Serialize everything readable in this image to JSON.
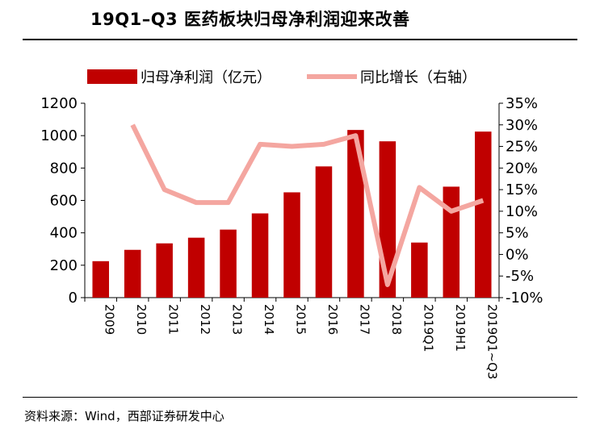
{
  "title": "19Q1–Q3 医药板块归母净利润迎来改善",
  "source": "资料来源：Wind，西部证券研发中心",
  "colors": {
    "bar": "#C00000",
    "line": "#F4A6A0",
    "axis": "#000000"
  },
  "chart_data": {
    "type": "bar",
    "categories": [
      "2009",
      "2010",
      "2011",
      "2012",
      "2013",
      "2014",
      "2015",
      "2016",
      "2017",
      "2018",
      "2019Q1",
      "2019H1",
      "2019Q1~Q3"
    ],
    "series": [
      {
        "name": "归母净利润（亿元）",
        "type": "bar",
        "axis": "left",
        "values": [
          225,
          295,
          335,
          370,
          420,
          520,
          650,
          810,
          1035,
          965,
          340,
          685,
          1025
        ]
      },
      {
        "name": "同比增长（右轴）",
        "type": "line",
        "axis": "right",
        "values": [
          null,
          30,
          15,
          12,
          12,
          25.5,
          25,
          25.5,
          27.5,
          -7,
          15.5,
          10,
          12.5
        ]
      }
    ],
    "left_axis": {
      "ylim": [
        0,
        1200
      ],
      "ticks": [
        "0",
        "200",
        "400",
        "600",
        "800",
        "1000",
        "1200"
      ]
    },
    "right_axis": {
      "ylim": [
        -10,
        35
      ],
      "ticks": [
        "-10%",
        "-5%",
        "0%",
        "5%",
        "10%",
        "15%",
        "20%",
        "25%",
        "30%",
        "35%"
      ]
    },
    "legend_position": "top",
    "grid": false
  }
}
